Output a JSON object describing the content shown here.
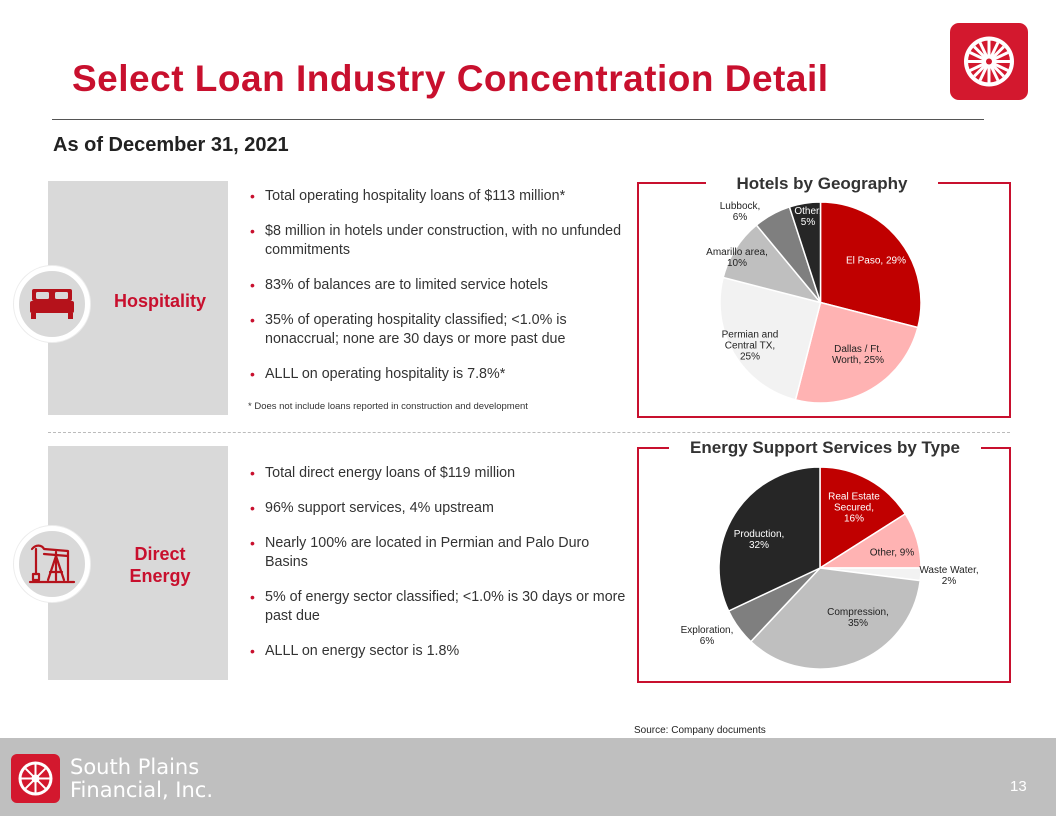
{
  "title": "Select Loan Industry Concentration Detail",
  "subtitle": "As of December 31, 2021",
  "hospitality": {
    "label": "Hospitality",
    "icon": "bed-icon",
    "bullets": [
      "Total operating hospitality loans of $113 million*",
      "$8 million in hotels under construction, with no unfunded commitments",
      "83% of balances are to limited service hotels",
      "35% of operating hospitality classified; <1.0% is nonaccrual; none are 30 days or more past due",
      "ALLL on operating hospitality is 7.8%*"
    ],
    "footnote": "*  Does not include loans reported in construction and development"
  },
  "energy": {
    "label_line1": "Direct",
    "label_line2": "Energy",
    "icon": "oil-pump-icon",
    "bullets": [
      "Total direct energy loans of $119 million",
      "96% support services, 4% upstream",
      "Nearly 100% are located in Permian and Palo Duro Basins",
      "5% of energy sector classified; <1.0% is 30 days or more past due",
      "ALLL on energy sector is 1.8%"
    ]
  },
  "chart_data": [
    {
      "type": "pie",
      "title": "Hotels by Geography",
      "slices": [
        {
          "label": [
            "El Paso, 29%"
          ],
          "value": 29,
          "color": "#c00000",
          "text_color": "#ffffff"
        },
        {
          "label": [
            "Dallas / Ft.",
            "Worth, 25%"
          ],
          "value": 25,
          "color": "#ffb3b3",
          "text_color": "#222222"
        },
        {
          "label": [
            "Permian  and",
            "Central TX,",
            "25%"
          ],
          "value": 25,
          "color": "#f2f2f2",
          "text_color": "#222222"
        },
        {
          "label": [
            "Amarillo area,",
            "10%"
          ],
          "value": 10,
          "color": "#bfbfbf",
          "text_color": "#222222"
        },
        {
          "label": [
            "Lubbock,",
            "6%"
          ],
          "value": 6,
          "color": "#7f7f7f",
          "text_color": "#222222"
        },
        {
          "label": [
            "Other,",
            "5%"
          ],
          "value": 5,
          "color": "#262626",
          "text_color": "#ffffff"
        }
      ]
    },
    {
      "type": "pie",
      "title": "Energy Support Services by Type",
      "slices": [
        {
          "label": [
            "Real Estate",
            "Secured,",
            "16%"
          ],
          "value": 16,
          "color": "#c00000",
          "text_color": "#ffffff"
        },
        {
          "label": [
            "Other, 9%"
          ],
          "value": 9,
          "color": "#ffb3b3",
          "text_color": "#222222"
        },
        {
          "label": [
            "Waste Water,",
            "2%"
          ],
          "value": 2,
          "color": "#f2f2f2",
          "text_color": "#222222"
        },
        {
          "label": [
            "Compression,",
            "35%"
          ],
          "value": 35,
          "color": "#bfbfbf",
          "text_color": "#222222"
        },
        {
          "label": [
            "Exploration,",
            "6%"
          ],
          "value": 6,
          "color": "#7f7f7f",
          "text_color": "#222222"
        },
        {
          "label": [
            "Production,",
            "32%"
          ],
          "value": 32,
          "color": "#262626",
          "text_color": "#ffffff"
        }
      ]
    }
  ],
  "source": "Source: Company documents",
  "footer": {
    "company_line1": "South Plains",
    "company_line2": "Financial, Inc.",
    "page_number": "13"
  },
  "colors": {
    "accent": "#c8102e",
    "panel_gray": "#d9d9d9",
    "footer_gray": "#bfbfbf"
  }
}
